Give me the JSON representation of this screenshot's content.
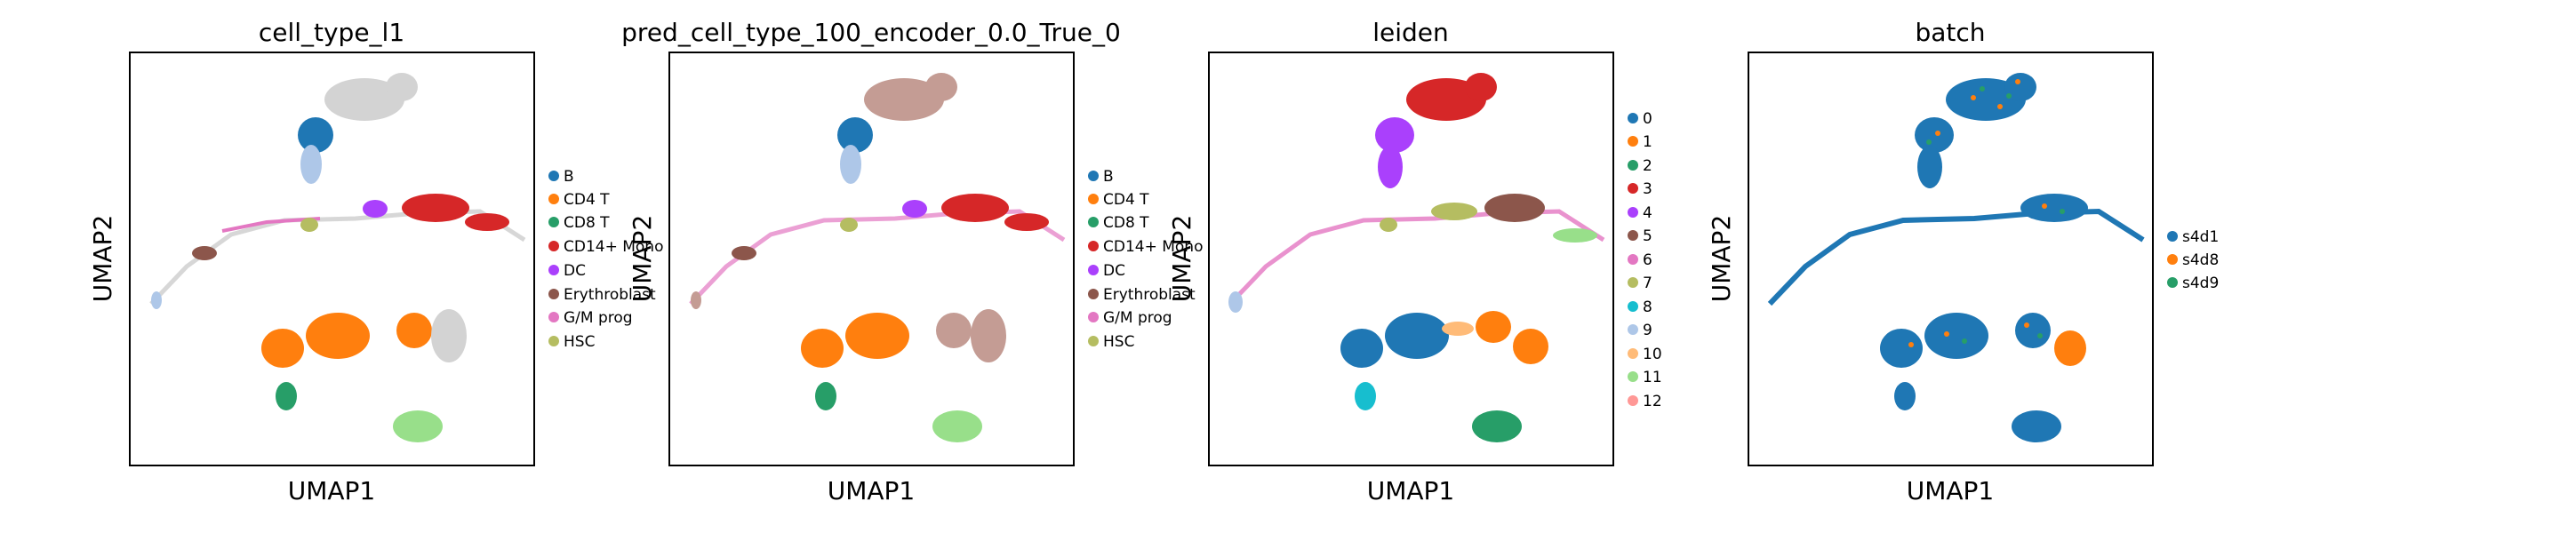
{
  "chart_data": [
    {
      "type": "scatter",
      "title": "cell_type_l1",
      "xlabel": "UMAP1",
      "ylabel": "UMAP2",
      "legend_position": "right",
      "legend": [
        {
          "label": "B",
          "color": "#1f77b4"
        },
        {
          "label": "CD4 T",
          "color": "#ff7f0e"
        },
        {
          "label": "CD8 T",
          "color": "#279e68"
        },
        {
          "label": "CD14+ Mono",
          "color": "#d62728"
        },
        {
          "label": "DC",
          "color": "#aa40fc"
        },
        {
          "label": "Erythroblast",
          "color": "#8c564b"
        },
        {
          "label": "G/M prog",
          "color": "#e377c2"
        },
        {
          "label": "HSC",
          "color": "#b5bd61"
        }
      ],
      "grid": false
    },
    {
      "type": "scatter",
      "title": "pred_cell_type_100_encoder_0.0_True_0",
      "xlabel": "UMAP1",
      "ylabel": "UMAP2",
      "legend_position": "right",
      "legend": [
        {
          "label": "B",
          "color": "#1f77b4"
        },
        {
          "label": "CD4 T",
          "color": "#ff7f0e"
        },
        {
          "label": "CD8 T",
          "color": "#279e68"
        },
        {
          "label": "CD14+ Mono",
          "color": "#d62728"
        },
        {
          "label": "DC",
          "color": "#aa40fc"
        },
        {
          "label": "Erythroblast",
          "color": "#8c564b"
        },
        {
          "label": "G/M prog",
          "color": "#e377c2"
        },
        {
          "label": "HSC",
          "color": "#b5bd61"
        }
      ],
      "grid": false
    },
    {
      "type": "scatter",
      "title": "leiden",
      "xlabel": "UMAP1",
      "ylabel": "UMAP2",
      "legend_position": "right",
      "legend": [
        {
          "label": "0",
          "color": "#1f77b4"
        },
        {
          "label": "1",
          "color": "#ff7f0e"
        },
        {
          "label": "2",
          "color": "#279e68"
        },
        {
          "label": "3",
          "color": "#d62728"
        },
        {
          "label": "4",
          "color": "#aa40fc"
        },
        {
          "label": "5",
          "color": "#8c564b"
        },
        {
          "label": "6",
          "color": "#e377c2"
        },
        {
          "label": "7",
          "color": "#b5bd61"
        },
        {
          "label": "8",
          "color": "#17becf"
        },
        {
          "label": "9",
          "color": "#aec7e8"
        },
        {
          "label": "10",
          "color": "#ffbb78"
        },
        {
          "label": "11",
          "color": "#98df8a"
        },
        {
          "label": "12",
          "color": "#ff9896"
        }
      ],
      "grid": false
    },
    {
      "type": "scatter",
      "title": "batch",
      "xlabel": "UMAP1",
      "ylabel": "UMAP2",
      "legend_position": "right",
      "legend": [
        {
          "label": "s4d1",
          "color": "#1f77b4"
        },
        {
          "label": "s4d8",
          "color": "#ff7f0e"
        },
        {
          "label": "s4d9",
          "color": "#279e68"
        }
      ],
      "grid": false
    }
  ],
  "colors": {
    "unlabeled_gray": "#d3d3d3",
    "lightblue": "#aec7e8",
    "pink_brown": "#c49c94",
    "light_green": "#98df8a"
  }
}
